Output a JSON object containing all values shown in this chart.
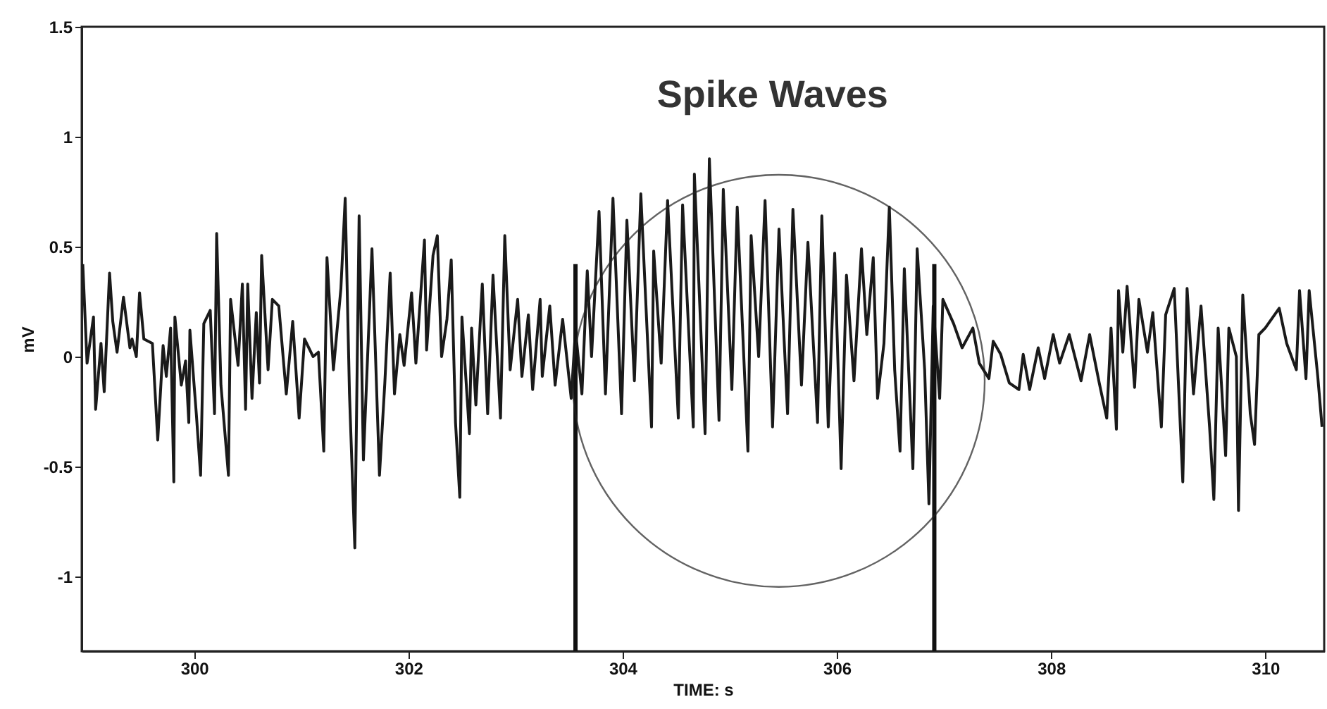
{
  "chart_data": {
    "type": "line",
    "xlabel": "TIME: s",
    "ylabel": "mV",
    "xlim": [
      298.95,
      310.55
    ],
    "ylim": [
      -1.34,
      1.5
    ],
    "xticks": [
      300,
      302,
      304,
      306,
      308,
      310
    ],
    "yticks": [
      -1,
      -0.5,
      0,
      0.5,
      1,
      1.5
    ],
    "grid": false,
    "marker": "none",
    "line_style": "solid",
    "annotations": [
      "Spike Waves"
    ],
    "ref_lines": [
      {
        "axis": "x",
        "value": 303.56,
        "label": null,
        "color": "#111111"
      },
      {
        "axis": "x",
        "value": 306.91,
        "label": null,
        "color": "#111111"
      }
    ],
    "series": [
      {
        "color": "#1a1a1a",
        "x": [
          298.96,
          299.0,
          299.06,
          299.08,
          299.13,
          299.16,
          299.21,
          299.24,
          299.28,
          299.34,
          299.4,
          299.42,
          299.46,
          299.49,
          299.53,
          299.61,
          299.66,
          299.71,
          299.74,
          299.78,
          299.81,
          299.82,
          299.88,
          299.92,
          299.95,
          299.96,
          300.02,
          300.06,
          300.09,
          300.15,
          300.19,
          300.21,
          300.25,
          300.32,
          300.34,
          300.41,
          300.45,
          300.48,
          300.5,
          300.54,
          300.58,
          300.61,
          300.63,
          300.69,
          300.73,
          300.79,
          300.86,
          300.92,
          300.98,
          301.03,
          301.11,
          301.16,
          301.21,
          301.24,
          301.3,
          301.37,
          301.41,
          301.45,
          301.5,
          301.54,
          301.58,
          301.66,
          301.73,
          301.78,
          301.83,
          301.87,
          301.92,
          301.96,
          302.03,
          302.07,
          302.15,
          302.17,
          302.23,
          302.27,
          302.31,
          302.36,
          302.4,
          302.44,
          302.48,
          302.5,
          302.57,
          302.59,
          302.63,
          302.69,
          302.74,
          302.79,
          302.86,
          302.9,
          302.95,
          303.02,
          303.06,
          303.12,
          303.16,
          303.23,
          303.25,
          303.32,
          303.37,
          303.44,
          303.52,
          303.56,
          303.62,
          303.67,
          303.71,
          303.78,
          303.84,
          303.91,
          303.99,
          304.04,
          304.11,
          304.17,
          304.27,
          304.29,
          304.36,
          304.42,
          304.52,
          304.56,
          304.66,
          304.67,
          304.77,
          304.81,
          304.9,
          304.94,
          305.02,
          305.07,
          305.17,
          305.2,
          305.27,
          305.33,
          305.4,
          305.46,
          305.54,
          305.59,
          305.67,
          305.73,
          305.82,
          305.86,
          305.92,
          305.98,
          306.04,
          306.09,
          306.16,
          306.23,
          306.28,
          306.34,
          306.38,
          306.44,
          306.49,
          306.54,
          306.59,
          306.63,
          306.71,
          306.75,
          306.82,
          306.86,
          306.9,
          306.96,
          306.99,
          307.09,
          307.17,
          307.27,
          307.33,
          307.42,
          307.46,
          307.53,
          307.61,
          307.7,
          307.74,
          307.8,
          307.88,
          307.94,
          308.02,
          308.08,
          308.17,
          308.28,
          308.36,
          308.45,
          308.52,
          308.56,
          308.61,
          308.63,
          308.67,
          308.71,
          308.78,
          308.82,
          308.9,
          308.95,
          309.03,
          309.07,
          309.15,
          309.23,
          309.27,
          309.33,
          309.4,
          309.48,
          309.52,
          309.56,
          309.63,
          309.66,
          309.73,
          309.75,
          309.79,
          309.86,
          309.9,
          309.94,
          310.0,
          310.13,
          310.2,
          310.29,
          310.32,
          310.38,
          310.41,
          310.49,
          310.53
        ],
        "values": [
          0.42,
          -0.03,
          0.18,
          -0.24,
          0.06,
          -0.16,
          0.38,
          0.16,
          0.02,
          0.27,
          0.04,
          0.08,
          0.0,
          0.29,
          0.08,
          0.06,
          -0.38,
          0.05,
          -0.09,
          0.13,
          -0.57,
          0.18,
          -0.13,
          -0.02,
          -0.3,
          0.12,
          -0.26,
          -0.54,
          0.15,
          0.21,
          -0.26,
          0.56,
          -0.13,
          -0.54,
          0.26,
          -0.04,
          0.33,
          -0.24,
          0.33,
          -0.19,
          0.2,
          -0.12,
          0.46,
          -0.06,
          0.26,
          0.23,
          -0.17,
          0.16,
          -0.28,
          0.08,
          0.0,
          0.02,
          -0.43,
          0.45,
          -0.06,
          0.31,
          0.72,
          -0.17,
          -0.87,
          0.64,
          -0.47,
          0.49,
          -0.54,
          -0.12,
          0.38,
          -0.17,
          0.1,
          -0.04,
          0.29,
          -0.03,
          0.53,
          0.03,
          0.46,
          0.55,
          0.0,
          0.17,
          0.44,
          -0.3,
          -0.64,
          0.18,
          -0.35,
          0.13,
          -0.22,
          0.33,
          -0.26,
          0.37,
          -0.28,
          0.55,
          -0.06,
          0.26,
          -0.09,
          0.19,
          -0.15,
          0.26,
          -0.09,
          0.23,
          -0.13,
          0.17,
          -0.19,
          0.12,
          -0.17,
          0.39,
          0.0,
          0.66,
          -0.17,
          0.72,
          -0.26,
          0.62,
          -0.11,
          0.74,
          -0.32,
          0.48,
          -0.03,
          0.71,
          -0.28,
          0.69,
          -0.32,
          0.83,
          -0.35,
          0.9,
          -0.29,
          0.76,
          -0.15,
          0.68,
          -0.43,
          0.55,
          0.0,
          0.71,
          -0.32,
          0.58,
          -0.26,
          0.67,
          -0.13,
          0.52,
          -0.3,
          0.64,
          -0.32,
          0.47,
          -0.51,
          0.37,
          -0.11,
          0.49,
          0.1,
          0.45,
          -0.19,
          0.06,
          0.68,
          -0.06,
          -0.43,
          0.4,
          -0.51,
          0.49,
          -0.06,
          -0.67,
          0.23,
          -0.19,
          0.26,
          0.15,
          0.04,
          0.13,
          -0.03,
          -0.1,
          0.07,
          0.01,
          -0.12,
          -0.15,
          0.01,
          -0.15,
          0.04,
          -0.1,
          0.1,
          -0.03,
          0.1,
          -0.11,
          0.1,
          -0.12,
          -0.28,
          0.13,
          -0.33,
          0.3,
          0.02,
          0.32,
          -0.14,
          0.26,
          0.02,
          0.2,
          -0.32,
          0.19,
          0.31,
          -0.57,
          0.31,
          -0.17,
          0.23,
          -0.32,
          -0.65,
          0.13,
          -0.45,
          0.13,
          0.0,
          -0.7,
          0.28,
          -0.26,
          -0.4,
          0.1,
          0.13,
          0.22,
          0.06,
          -0.06,
          0.3,
          -0.1,
          0.3,
          -0.09,
          -0.32
        ]
      }
    ]
  }
}
